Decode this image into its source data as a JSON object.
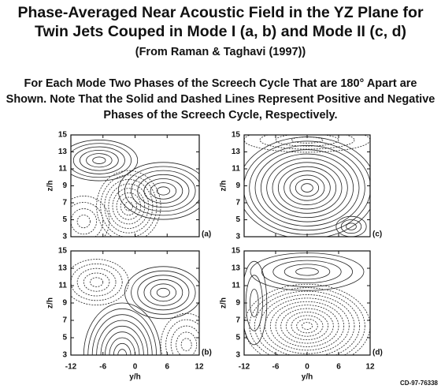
{
  "title": [
    "Phase-Averaged Near Acoustic Field in the YZ Plane for",
    "Twin Jets Couped in Mode I (a, b) and Mode II (c, d)"
  ],
  "subtitle": "(From Raman & Taghavi (1997))",
  "caption": [
    {
      "text": "For Each Mode",
      "bold": true
    },
    {
      "text": " Two Phases of the Screech Cycle That are 180° Apart are Shown. ",
      "bold": false
    },
    {
      "text": "Note",
      "bold": true
    },
    {
      "text": " That the Solid and Dashed Lines Represent Positive and Negative Phases of the Screech Cycle, Respectively.",
      "bold": false
    }
  ],
  "axes": {
    "xlabel": "y/h",
    "ylabel": "z/h",
    "xlim": [
      -12,
      12
    ],
    "xticks": [
      -12,
      -6,
      0,
      6,
      12
    ],
    "ylim": [
      3,
      15
    ],
    "yticks": [
      3,
      5,
      7,
      9,
      11,
      13,
      15
    ]
  },
  "panels": [
    {
      "label": "(a)"
    },
    {
      "label": "(b)"
    },
    {
      "label": "(c)"
    },
    {
      "label": "(d)"
    }
  ],
  "footer": "CD-97-76338"
}
